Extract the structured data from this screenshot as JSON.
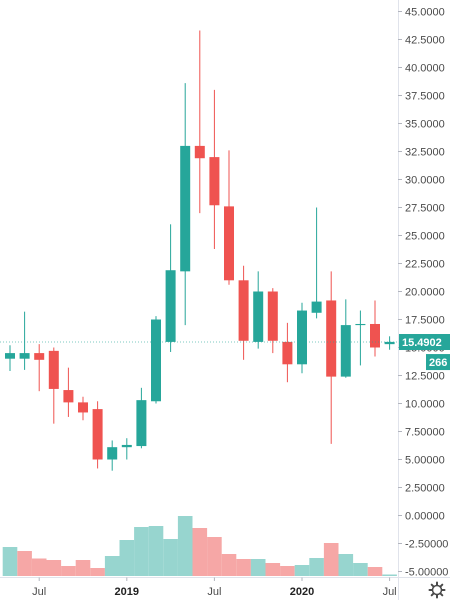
{
  "colors": {
    "up": "#26a69a",
    "down": "#ef5350",
    "up_volume": "#97d5cf",
    "down_volume": "#f6a7a6",
    "axis_line": "#e0e3eb",
    "text": "#4a4a4a",
    "price_line": "#26a69a"
  },
  "icons": {
    "settings": "gear-icon"
  },
  "chart_data": {
    "type": "candlestick",
    "interval": "monthly",
    "grid": false,
    "legend": "none",
    "y_axis": {
      "position": "right",
      "ticks": [
        "45.0000",
        "42.5000",
        "40.0000",
        "37.5000",
        "35.0000",
        "32.5000",
        "30.0000",
        "27.5000",
        "25.0000",
        "22.5000",
        "20.0000",
        "17.5000",
        "15.0000",
        "12.5000",
        "10.0000",
        "7.50000",
        "5.00000",
        "2.50000",
        "0.00000",
        "-2.50000",
        "-5.00000"
      ],
      "tick_values": [
        45,
        42.5,
        40,
        37.5,
        35,
        32.5,
        30,
        27.5,
        25,
        22.5,
        20,
        17.5,
        15,
        12.5,
        10,
        7.5,
        5,
        2.5,
        0,
        -2.5,
        -5
      ],
      "range": [
        -5.5,
        46
      ]
    },
    "x_axis": {
      "labels": [
        {
          "text": "Jul",
          "candle": 2,
          "bold": false
        },
        {
          "text": "2019",
          "candle": 8,
          "bold": true
        },
        {
          "text": "Jul",
          "candle": 14,
          "bold": false
        },
        {
          "text": "2020",
          "candle": 20,
          "bold": true
        },
        {
          "text": "Jul",
          "candle": 26,
          "bold": false
        }
      ]
    },
    "last_price": {
      "label": "15.4902",
      "value": 15.49
    },
    "secondary_badge": {
      "label": "266",
      "value": 13.7
    },
    "candles": [
      {
        "o": 14.0,
        "h": 15.2,
        "l": 12.9,
        "c": 14.5
      },
      {
        "o": 14.0,
        "h": 18.2,
        "l": 13.0,
        "c": 14.5
      },
      {
        "o": 14.5,
        "h": 15.3,
        "l": 11.1,
        "c": 13.9
      },
      {
        "o": 14.7,
        "h": 15.0,
        "l": 8.2,
        "c": 11.3
      },
      {
        "o": 11.2,
        "h": 13.2,
        "l": 8.8,
        "c": 10.1
      },
      {
        "o": 10.1,
        "h": 10.6,
        "l": 8.5,
        "c": 9.2
      },
      {
        "o": 9.5,
        "h": 10.2,
        "l": 4.2,
        "c": 5.0
      },
      {
        "o": 5.0,
        "h": 6.7,
        "l": 4.0,
        "c": 6.1
      },
      {
        "o": 6.1,
        "h": 6.9,
        "l": 5.0,
        "c": 6.3
      },
      {
        "o": 6.2,
        "h": 11.4,
        "l": 6.0,
        "c": 10.3
      },
      {
        "o": 10.2,
        "h": 17.8,
        "l": 10.0,
        "c": 17.5
      },
      {
        "o": 15.5,
        "h": 26.0,
        "l": 14.6,
        "c": 21.9
      },
      {
        "o": 21.8,
        "h": 38.6,
        "l": 17.0,
        "c": 33.0
      },
      {
        "o": 33.0,
        "h": 43.3,
        "l": 27.0,
        "c": 31.9
      },
      {
        "o": 32.0,
        "h": 38.0,
        "l": 23.8,
        "c": 27.7
      },
      {
        "o": 27.6,
        "h": 32.6,
        "l": 20.6,
        "c": 21.0
      },
      {
        "o": 21.0,
        "h": 22.3,
        "l": 13.9,
        "c": 15.6
      },
      {
        "o": 15.5,
        "h": 21.8,
        "l": 14.9,
        "c": 20.0
      },
      {
        "o": 20.0,
        "h": 20.3,
        "l": 14.5,
        "c": 15.6
      },
      {
        "o": 15.5,
        "h": 17.2,
        "l": 11.9,
        "c": 13.5
      },
      {
        "o": 13.5,
        "h": 19.0,
        "l": 12.7,
        "c": 18.3
      },
      {
        "o": 18.1,
        "h": 27.5,
        "l": 17.6,
        "c": 19.1
      },
      {
        "o": 19.2,
        "h": 21.8,
        "l": 6.4,
        "c": 12.4
      },
      {
        "o": 12.4,
        "h": 19.3,
        "l": 12.3,
        "c": 17.0
      },
      {
        "o": 17.0,
        "h": 18.3,
        "l": 13.4,
        "c": 17.1
      },
      {
        "o": 17.1,
        "h": 19.2,
        "l": 14.2,
        "c": 15.0
      },
      {
        "o": 15.3,
        "h": 16.0,
        "l": 14.8,
        "c": 15.5
      }
    ],
    "volume": [
      {
        "v": 2.9,
        "up": true
      },
      {
        "v": 2.5,
        "up": false
      },
      {
        "v": 1.75,
        "up": false
      },
      {
        "v": 1.6,
        "up": false
      },
      {
        "v": 1.0,
        "up": false
      },
      {
        "v": 1.6,
        "up": false
      },
      {
        "v": 0.8,
        "up": false
      },
      {
        "v": 2.0,
        "up": true
      },
      {
        "v": 3.6,
        "up": true
      },
      {
        "v": 4.9,
        "up": true
      },
      {
        "v": 5.0,
        "up": true
      },
      {
        "v": 3.7,
        "up": true
      },
      {
        "v": 6.0,
        "up": true
      },
      {
        "v": 4.8,
        "up": false
      },
      {
        "v": 3.9,
        "up": false
      },
      {
        "v": 2.2,
        "up": false
      },
      {
        "v": 1.7,
        "up": false
      },
      {
        "v": 1.7,
        "up": true
      },
      {
        "v": 1.3,
        "up": false
      },
      {
        "v": 1.0,
        "up": false
      },
      {
        "v": 1.1,
        "up": true
      },
      {
        "v": 1.8,
        "up": true
      },
      {
        "v": 3.3,
        "up": false
      },
      {
        "v": 2.2,
        "up": true
      },
      {
        "v": 1.3,
        "up": true
      },
      {
        "v": 0.9,
        "up": false
      },
      {
        "v": 0.15,
        "up": true
      }
    ]
  }
}
